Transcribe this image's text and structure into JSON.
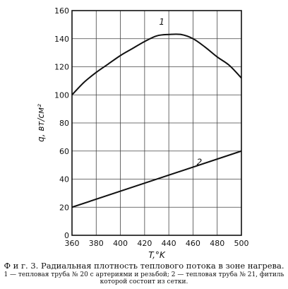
{
  "chart_data": {
    "type": "line",
    "xlabel": "T,°K",
    "ylabel": "q, вт/см²",
    "xlim": [
      360,
      500
    ],
    "ylim": [
      0,
      160
    ],
    "x_ticks": [
      "360",
      "380",
      "400",
      "420",
      "440",
      "460",
      "480",
      "500"
    ],
    "y_ticks": [
      "0",
      "20",
      "40",
      "60",
      "80",
      "100",
      "120",
      "140",
      "160"
    ],
    "grid": true,
    "series": [
      {
        "name": "1",
        "x": [
          360,
          370,
          380,
          390,
          400,
          410,
          420,
          430,
          440,
          450,
          460,
          470,
          480,
          490,
          500
        ],
        "y": [
          100,
          109,
          116,
          122,
          128,
          133,
          138,
          142,
          143,
          143,
          140,
          134,
          127,
          121,
          112
        ]
      },
      {
        "name": "2",
        "x": [
          360,
          500
        ],
        "y": [
          20,
          60
        ]
      }
    ]
  },
  "caption": {
    "main": "Ф и г.  3. Радиальная плотность теплового потока в зоне нагрева.",
    "sub": "1 — тепловая труба № 20 с артериями и резьбой; 2 — тепловая труба № 21, фитиль которой состоит из сетки."
  }
}
